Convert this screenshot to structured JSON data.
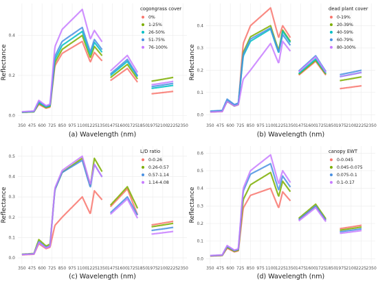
{
  "chart_data": [
    {
      "type": "line",
      "caption": "(a) Wavelength (nm)",
      "ylabel": "Reflectance",
      "xlim": [
        300,
        2400
      ],
      "ylim": [
        -0.03,
        0.56
      ],
      "grid": true,
      "legend_position": "top-right",
      "xticks": [
        "350",
        "475",
        "600",
        "725",
        "850",
        "975",
        "1100",
        "1225",
        "1350",
        "1475",
        "1600",
        "1725",
        "1850",
        "1975",
        "2100",
        "2225",
        "2350"
      ],
      "yticks": [
        "0.0",
        "0.2",
        "0.4"
      ],
      "legend_title": "cogongrass cover",
      "series": [
        {
          "name": "0%",
          "color": "#f8766d",
          "v": [
            0.015,
            0.055,
            0.31,
            0.37,
            0.315,
            0.235,
            0.205,
            0.12
          ]
        },
        {
          "name": "1-25%",
          "color": "#7cae00",
          "v": [
            0.015,
            0.06,
            0.33,
            0.4,
            0.345,
            0.255,
            0.225,
            0.19
          ]
        },
        {
          "name": "26-50%",
          "color": "#00bfc4",
          "v": [
            0.016,
            0.065,
            0.35,
            0.42,
            0.365,
            0.27,
            0.24,
            0.15
          ]
        },
        {
          "name": "51-75%",
          "color": "#4a90e2",
          "v": [
            0.017,
            0.07,
            0.37,
            0.44,
            0.38,
            0.28,
            0.245,
            0.16
          ]
        },
        {
          "name": "76-100%",
          "color": "#c77cff",
          "v": [
            0.018,
            0.075,
            0.43,
            0.53,
            0.425,
            0.3,
            0.265,
            0.17
          ]
        }
      ]
    },
    {
      "type": "line",
      "caption": "(b) Wavelength (nm)",
      "ylabel": "Reflectance",
      "xlim": [
        300,
        2400
      ],
      "ylim": [
        -0.03,
        0.5
      ],
      "grid": true,
      "legend_position": "top-right",
      "xticks": [
        "350",
        "475",
        "600",
        "725",
        "850",
        "975",
        "1100",
        "1225",
        "1350",
        "1475",
        "1600",
        "1725",
        "1850",
        "1975",
        "2100",
        "2225",
        "2350"
      ],
      "yticks": [
        "0.0",
        "0.1",
        "0.2",
        "0.3",
        "0.4"
      ],
      "legend_title": "dead plant cover",
      "series": [
        {
          "name": "0-19%",
          "color": "#f8766d",
          "v": [
            0.012,
            0.06,
            0.4,
            0.48,
            0.4,
            0.24,
            0.22,
            0.13
          ]
        },
        {
          "name": "20-39%",
          "color": "#7cae00",
          "v": [
            0.014,
            0.06,
            0.35,
            0.4,
            0.38,
            0.245,
            0.225,
            0.17
          ]
        },
        {
          "name": "40-59%",
          "color": "#00bfc4",
          "v": [
            0.015,
            0.065,
            0.33,
            0.385,
            0.375,
            0.25,
            0.23,
            0.19
          ]
        },
        {
          "name": "60-79%",
          "color": "#4a90e2",
          "v": [
            0.016,
            0.07,
            0.34,
            0.39,
            0.36,
            0.265,
            0.24,
            0.2
          ]
        },
        {
          "name": "80-100%",
          "color": "#c77cff",
          "v": [
            0.012,
            0.06,
            0.2,
            0.32,
            0.33,
            0.26,
            0.235,
            0.19
          ]
        }
      ]
    },
    {
      "type": "line",
      "caption": "(c) Wavelength (nm)",
      "ylabel": "Reflectance",
      "xlim": [
        300,
        2400
      ],
      "ylim": [
        -0.03,
        0.55
      ],
      "grid": true,
      "legend_position": "top-right",
      "xticks": [
        "350",
        "475",
        "600",
        "725",
        "850",
        "975",
        "1100",
        "1225",
        "1350",
        "1475",
        "1600",
        "1725",
        "1850",
        "1975",
        "2100",
        "2225",
        "2350"
      ],
      "yticks": [
        "0.0",
        "0.1",
        "0.2",
        "0.3",
        "0.4",
        "0.5"
      ],
      "legend_title": "L/D ratio",
      "series": [
        {
          "name": "0-0.26",
          "color": "#f8766d",
          "v": [
            0.015,
            0.07,
            0.2,
            0.3,
            0.33,
            0.34,
            0.26,
            0.18
          ]
        },
        {
          "name": "0.26-0.57",
          "color": "#7cae00",
          "v": [
            0.018,
            0.09,
            0.42,
            0.49,
            0.49,
            0.35,
            0.3,
            0.17
          ]
        },
        {
          "name": "0.57-1.14",
          "color": "#4a90e2",
          "v": [
            0.017,
            0.08,
            0.42,
            0.48,
            0.46,
            0.3,
            0.26,
            0.15
          ]
        },
        {
          "name": "1.14-4.08",
          "color": "#c77cff",
          "v": [
            0.016,
            0.075,
            0.43,
            0.5,
            0.46,
            0.29,
            0.24,
            0.13
          ]
        }
      ]
    },
    {
      "type": "line",
      "caption": "(d) Wavelength (nm)",
      "ylabel": "Reflectance",
      "xlim": [
        300,
        2400
      ],
      "ylim": [
        -0.03,
        0.64
      ],
      "grid": true,
      "legend_position": "top-right",
      "xticks": [
        "350",
        "475",
        "600",
        "725",
        "850",
        "975",
        "1100",
        "1225",
        "1350",
        "1475",
        "1600",
        "1725",
        "1850",
        "1975",
        "2100",
        "2225",
        "2350"
      ],
      "yticks": [
        "0.0",
        "0.1",
        "0.2",
        "0.3",
        "0.4",
        "0.5",
        "0.6"
      ],
      "legend_title": "canopy EWT",
      "series": [
        {
          "name": "0-0.045",
          "color": "#f8766d",
          "v": [
            0.015,
            0.06,
            0.36,
            0.4,
            0.38,
            0.3,
            0.27,
            0.19
          ]
        },
        {
          "name": "0.045-0.075",
          "color": "#7cae00",
          "v": [
            0.016,
            0.065,
            0.42,
            0.49,
            0.44,
            0.31,
            0.28,
            0.18
          ]
        },
        {
          "name": "0.075-0.1",
          "color": "#4a90e2",
          "v": [
            0.017,
            0.07,
            0.48,
            0.54,
            0.47,
            0.3,
            0.27,
            0.17
          ]
        },
        {
          "name": "0.1-0.17",
          "color": "#c77cff",
          "v": [
            0.018,
            0.075,
            0.5,
            0.59,
            0.5,
            0.29,
            0.26,
            0.16
          ]
        }
      ]
    }
  ]
}
